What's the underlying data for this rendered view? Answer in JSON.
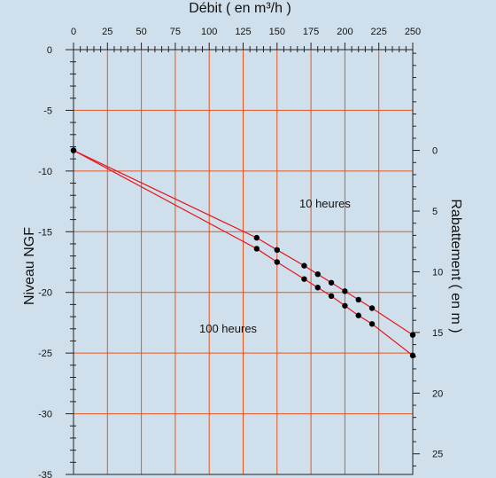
{
  "chart_data": {
    "type": "line",
    "title": "",
    "top_axis": {
      "label": "Débit ( en m³/h )",
      "ticks": [
        0,
        25,
        50,
        75,
        100,
        125,
        150,
        175,
        200,
        225,
        250
      ],
      "range": [
        0,
        250
      ],
      "minor_step": 5
    },
    "left_axis": {
      "label": "Niveau NGF",
      "ticks": [
        0,
        -5,
        -10,
        -15,
        -20,
        -25,
        -30,
        -35
      ],
      "range": [
        0,
        -35
      ],
      "minor_step": 1
    },
    "right_axis": {
      "label": "Rabattement ( en m )",
      "ticks": [
        0,
        5,
        10,
        15,
        20,
        25
      ],
      "zero_at_level": -8.3,
      "minor_step": 1
    },
    "grid": true,
    "colors": {
      "grid": "#e8541c",
      "line": "#e8141c",
      "point": "#000000",
      "background": "#cfe0ec"
    },
    "series": [
      {
        "name": "10 heures",
        "x": [
          0,
          135,
          150,
          170,
          180,
          190,
          200,
          210,
          220,
          250
        ],
        "y": [
          -8.3,
          -15.5,
          -16.5,
          -17.8,
          -18.5,
          -19.2,
          -19.9,
          -20.6,
          -21.3,
          -23.5
        ]
      },
      {
        "name": "100 heures",
        "x": [
          0,
          135,
          150,
          170,
          180,
          190,
          200,
          210,
          220,
          250
        ],
        "y": [
          -8.3,
          -16.4,
          -17.5,
          -18.9,
          -19.6,
          -20.3,
          -21.1,
          -21.9,
          -22.6,
          -25.2
        ]
      }
    ]
  }
}
